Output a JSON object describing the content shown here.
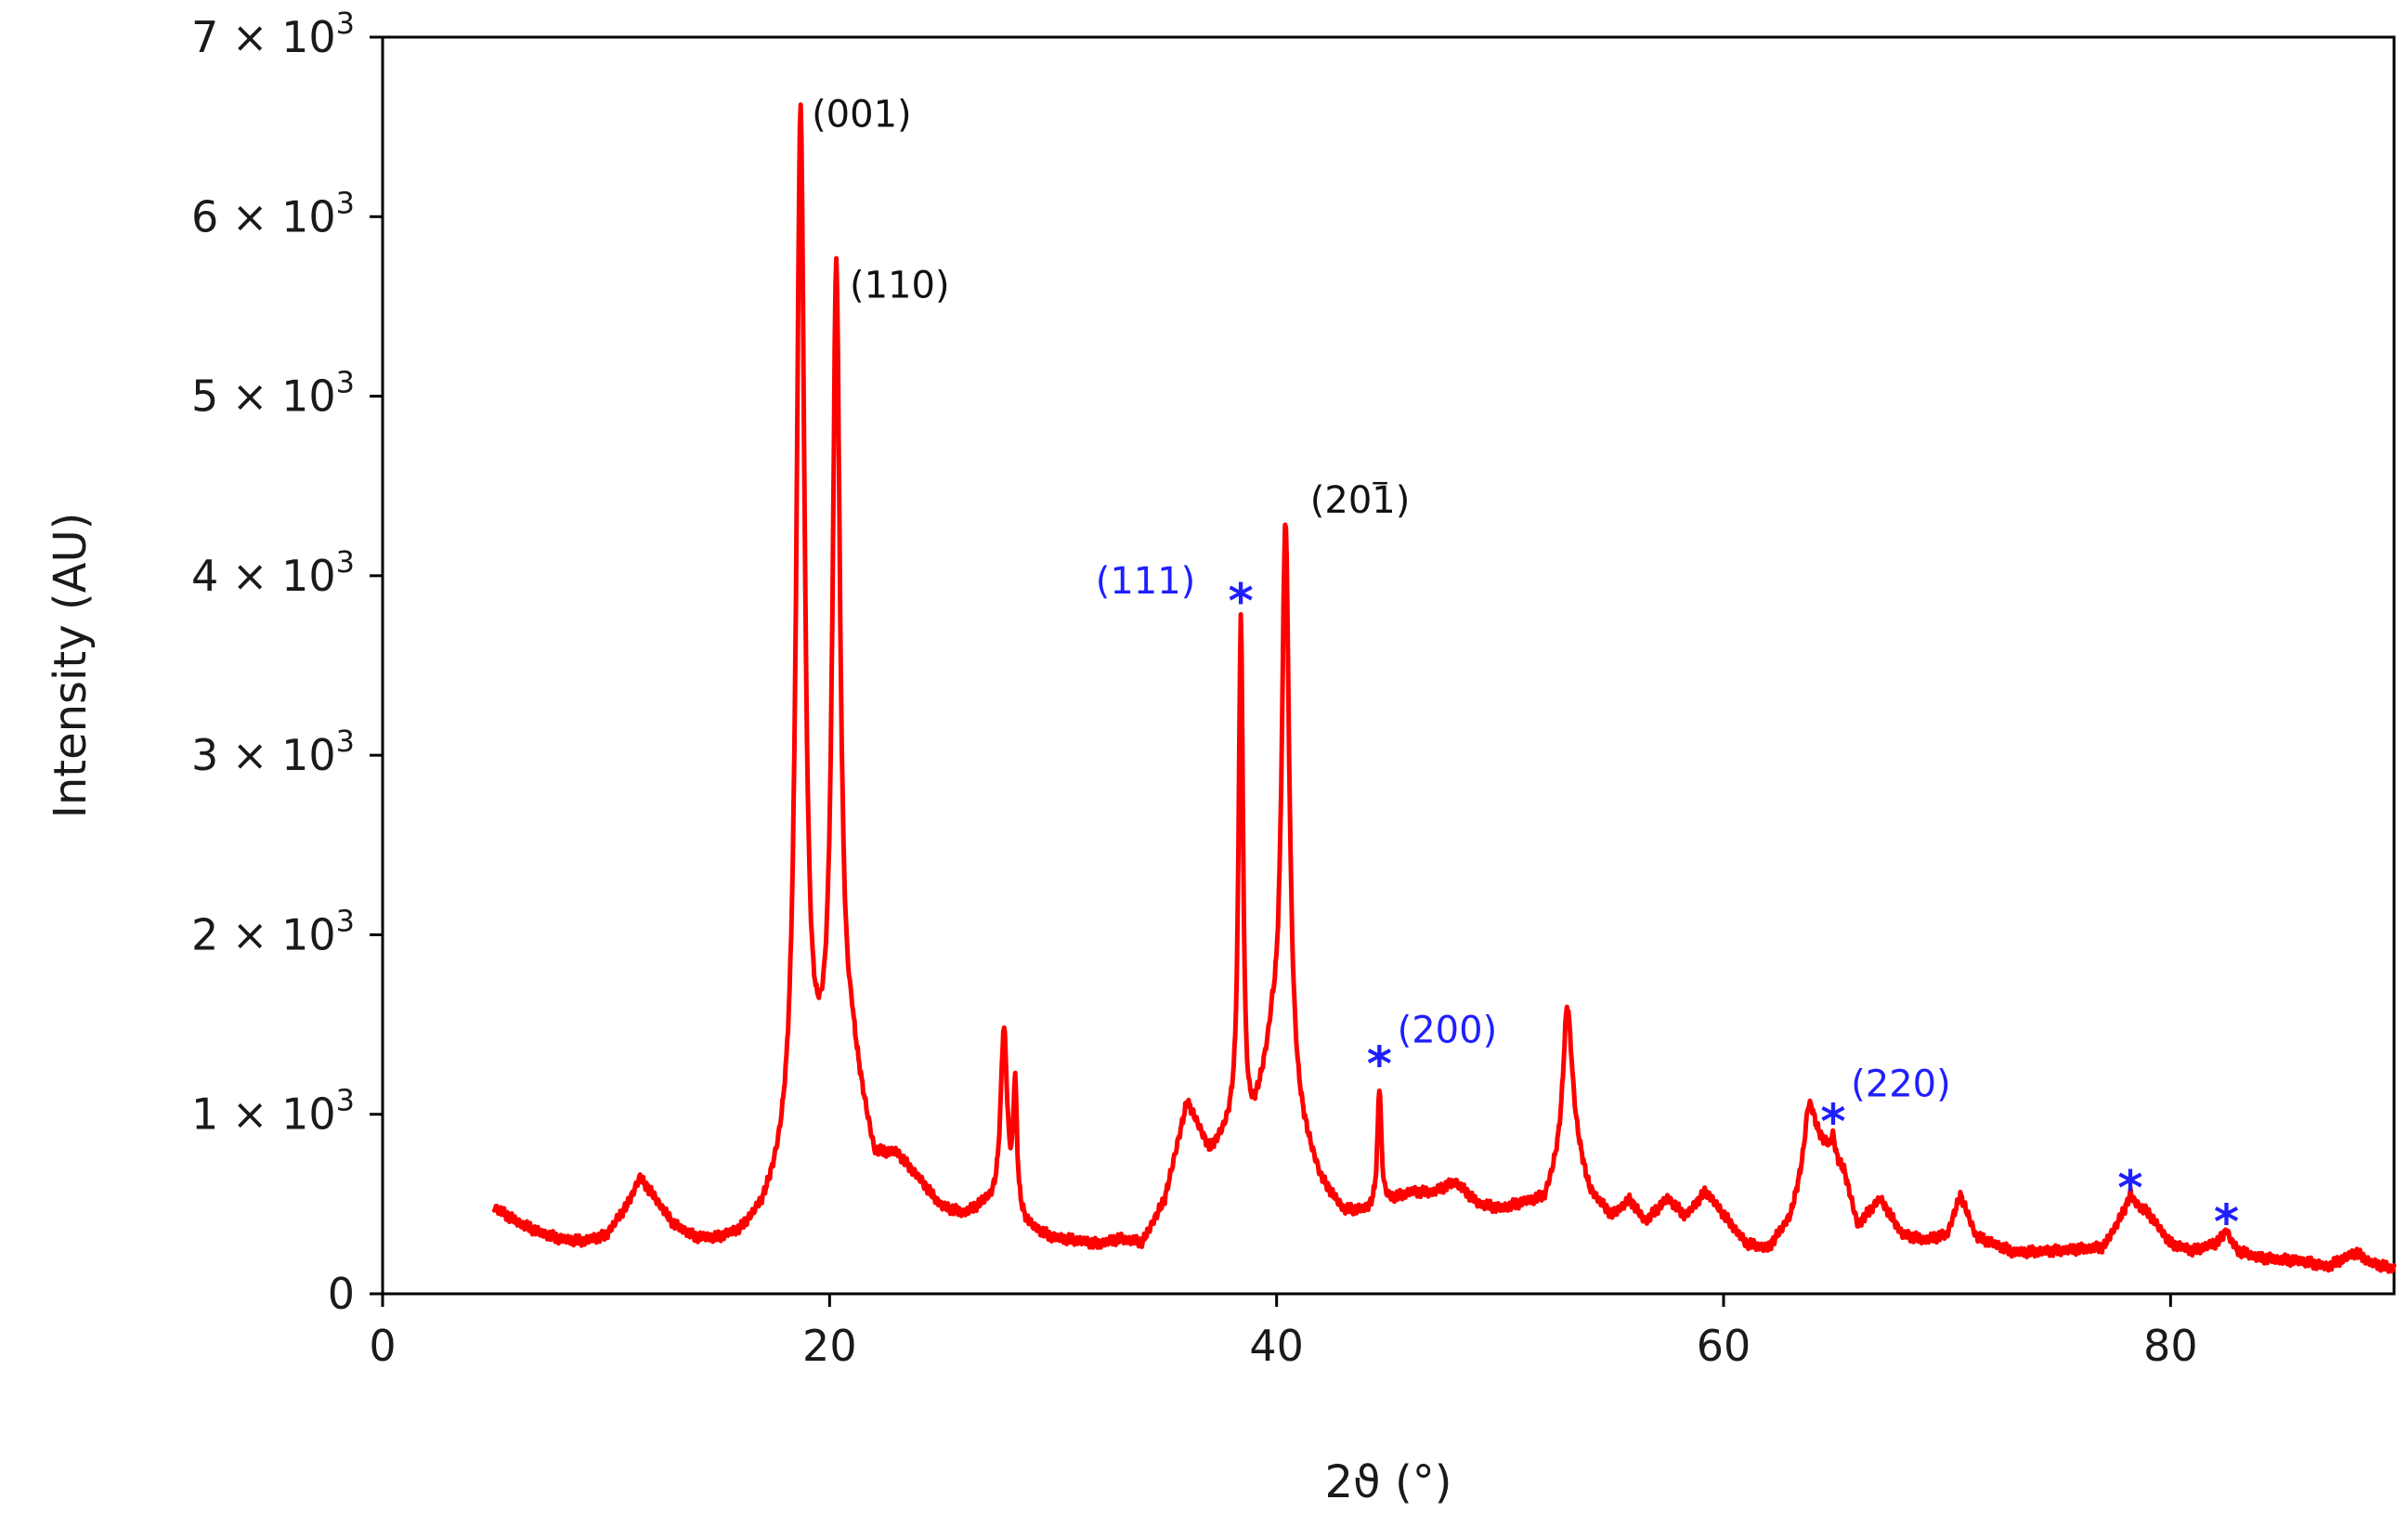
{
  "chart_data": {
    "type": "line",
    "title": "",
    "xlabel": "2ϑ (°)",
    "ylabel": "Intensity (AU)",
    "xlim": [
      0,
      90
    ],
    "ylim": [
      0,
      7000
    ],
    "x_ticks": [
      0,
      20,
      40,
      60,
      80
    ],
    "x_tick_labels": [
      "0",
      "20",
      "40",
      "60",
      "80"
    ],
    "y_ticks": [
      0,
      1000,
      2000,
      3000,
      4000,
      5000,
      6000,
      7000
    ],
    "y_tick_labels": [
      {
        "value": 0,
        "mantissa": "0",
        "exponent": ""
      },
      {
        "value": 1000,
        "mantissa": "1 × 10",
        "exponent": "3"
      },
      {
        "value": 2000,
        "mantissa": "2 × 10",
        "exponent": "3"
      },
      {
        "value": 3000,
        "mantissa": "3 × 10",
        "exponent": "3"
      },
      {
        "value": 4000,
        "mantissa": "4 × 10",
        "exponent": "3"
      },
      {
        "value": 5000,
        "mantissa": "5 × 10",
        "exponent": "3"
      },
      {
        "value": 6000,
        "mantissa": "6 × 10",
        "exponent": "3"
      },
      {
        "value": 7000,
        "mantissa": "7 × 10",
        "exponent": "3"
      }
    ],
    "grid": false,
    "legend": "none",
    "series_color": "#ff0000",
    "annotation_colors": {
      "black": "#111111",
      "blue": "#1f1fff"
    },
    "series": [
      {
        "baseline": [
          [
            5,
            480
          ],
          [
            6,
            400
          ],
          [
            7,
            340
          ],
          [
            8,
            300
          ],
          [
            9,
            290
          ],
          [
            10,
            320
          ],
          [
            11,
            500
          ],
          [
            11.5,
            640
          ],
          [
            12,
            560
          ],
          [
            13,
            380
          ],
          [
            14,
            300
          ],
          [
            15,
            290
          ],
          [
            16,
            320
          ],
          [
            17,
            430
          ],
          [
            18,
            650
          ],
          [
            19.5,
            1000
          ],
          [
            21,
            1250
          ],
          [
            22,
            720
          ],
          [
            23,
            750
          ],
          [
            24,
            620
          ],
          [
            25,
            470
          ],
          [
            26,
            430
          ],
          [
            27,
            480
          ],
          [
            29,
            350
          ],
          [
            30,
            300
          ],
          [
            31,
            290
          ],
          [
            32,
            270
          ],
          [
            33,
            300
          ],
          [
            34,
            280
          ],
          [
            35,
            520
          ],
          [
            36,
            1060
          ],
          [
            37,
            780
          ],
          [
            38,
            900
          ],
          [
            38.6,
            800
          ],
          [
            39,
            930
          ],
          [
            39.8,
            1320
          ],
          [
            41,
            900
          ],
          [
            42,
            600
          ],
          [
            43,
            450
          ],
          [
            44,
            450
          ],
          [
            46,
            560
          ],
          [
            47,
            560
          ],
          [
            48,
            620
          ],
          [
            49,
            500
          ],
          [
            50,
            470
          ],
          [
            51,
            500
          ],
          [
            52,
            520
          ],
          [
            53.2,
            900
          ],
          [
            54,
            560
          ],
          [
            55,
            430
          ],
          [
            55.8,
            520
          ],
          [
            56.5,
            400
          ],
          [
            57.5,
            530
          ],
          [
            58.3,
            430
          ],
          [
            59.2,
            570
          ],
          [
            60,
            440
          ],
          [
            61,
            280
          ],
          [
            62,
            250
          ],
          [
            63,
            430
          ],
          [
            64,
            900
          ],
          [
            64.6,
            820
          ],
          [
            65.4,
            680
          ],
          [
            66,
            380
          ],
          [
            67,
            530
          ],
          [
            68,
            330
          ],
          [
            69,
            300
          ],
          [
            70,
            330
          ],
          [
            70.6,
            550
          ],
          [
            71.3,
            320
          ],
          [
            73,
            230
          ],
          [
            75,
            240
          ],
          [
            77,
            260
          ],
          [
            78.2,
            520
          ],
          [
            79,
            450
          ],
          [
            80,
            280
          ],
          [
            81,
            240
          ],
          [
            82,
            280
          ],
          [
            82.5,
            330
          ],
          [
            83,
            240
          ],
          [
            84,
            200
          ],
          [
            86,
            180
          ],
          [
            87,
            150
          ],
          [
            88.3,
            230
          ],
          [
            89,
            170
          ],
          [
            90,
            140
          ]
        ],
        "peaks": [
          {
            "x": 18.7,
            "y": 6550,
            "w": 0.22
          },
          {
            "x": 20.3,
            "y": 5650,
            "w": 0.2
          },
          {
            "x": 27.8,
            "y": 1450,
            "w": 0.18
          },
          {
            "x": 28.3,
            "y": 1100,
            "w": 0.1
          },
          {
            "x": 38.4,
            "y": 3750,
            "w": 0.12
          },
          {
            "x": 40.4,
            "y": 4300,
            "w": 0.2
          },
          {
            "x": 44.6,
            "y": 1150,
            "w": 0.1
          },
          {
            "x": 53.0,
            "y": 1600,
            "w": 0.22
          },
          {
            "x": 63.8,
            "y": 1050,
            "w": 0.2
          },
          {
            "x": 64.9,
            "y": 880,
            "w": 0.1
          },
          {
            "x": 78.2,
            "y": 560,
            "w": 0.12
          },
          {
            "x": 82.5,
            "y": 360,
            "w": 0.1
          }
        ]
      }
    ],
    "annotations": [
      {
        "id": "001",
        "text": "(001)",
        "x": 19.2,
        "y": 6500,
        "color": "black"
      },
      {
        "id": "110",
        "text": "(110)",
        "x": 20.9,
        "y": 5550,
        "color": "black"
      },
      {
        "id": "201",
        "text": "(201)",
        "bar_over": "1",
        "x": 41.5,
        "y": 4350,
        "color": "black"
      },
      {
        "id": "111",
        "text": "(111)",
        "x": 31.9,
        "y": 3900,
        "color": "blue"
      },
      {
        "id": "200",
        "text": "(200)",
        "x": 45.4,
        "y": 1400,
        "color": "blue"
      },
      {
        "id": "220",
        "text": "(220)",
        "x": 65.7,
        "y": 1100,
        "color": "blue"
      }
    ],
    "markers": [
      {
        "symbol": "*",
        "x": 38.4,
        "y": 3840,
        "color": "blue"
      },
      {
        "symbol": "*",
        "x": 44.6,
        "y": 1260,
        "color": "blue"
      },
      {
        "symbol": "*",
        "x": 64.9,
        "y": 940,
        "color": "blue"
      },
      {
        "symbol": "*",
        "x": 78.2,
        "y": 570,
        "color": "blue"
      },
      {
        "symbol": "*",
        "x": 82.5,
        "y": 380,
        "color": "blue"
      }
    ]
  }
}
